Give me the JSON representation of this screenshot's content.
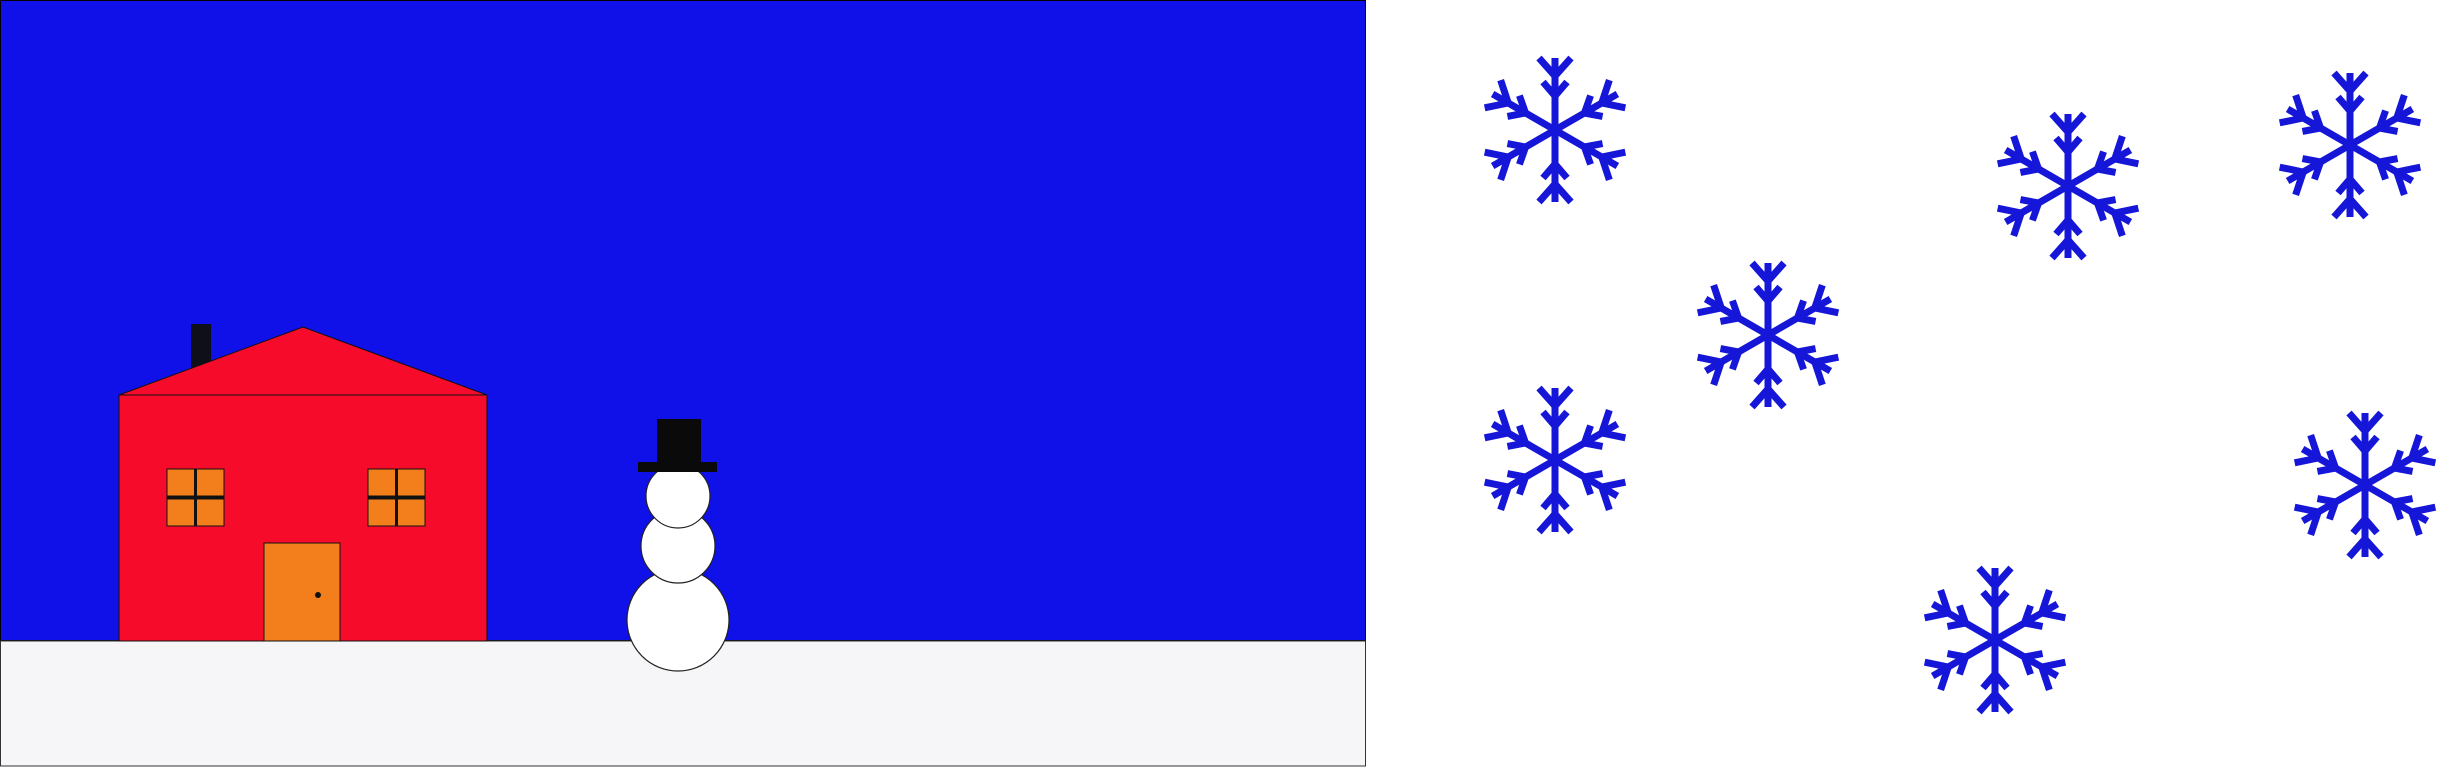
{
  "scene": {
    "colors": {
      "sky": "#1010e8",
      "snow_ground": "#f6f6f8",
      "house_wall": "#f70b2a",
      "roof": "#f70b2a",
      "chimney": "#0f0f1a",
      "window": "#f27f1b",
      "window_frame": "#111111",
      "door": "#f27f1b",
      "door_knob": "#111111",
      "snowman": "#ffffff",
      "snowman_outline": "#222222",
      "hat": "#0a0a0a",
      "snowflake": "#1616d8",
      "page_background": "#ffffff"
    },
    "house": {
      "windows": 2,
      "door": 1,
      "chimney": 1
    },
    "snowman": {
      "body_balls": 3,
      "hat": "top-hat"
    },
    "snowflakes": {
      "count": 7,
      "icon": "snowflake-icon"
    }
  }
}
